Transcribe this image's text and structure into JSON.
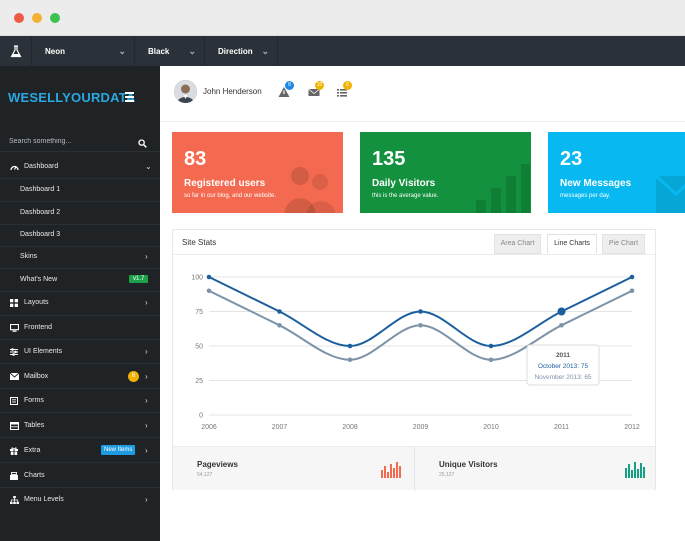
{
  "theme_bar": {
    "items": [
      {
        "label": "Neon"
      },
      {
        "label": "Black"
      },
      {
        "label": "Direction"
      }
    ]
  },
  "sidebar": {
    "logo": "WESELLYOURDATA",
    "search_placeholder": "Search something...",
    "items": [
      {
        "label": "Dashboard",
        "icon": "gauge-icon"
      },
      {
        "label": "Dashboard 1"
      },
      {
        "label": "Dashboard 2"
      },
      {
        "label": "Dashboard 3"
      },
      {
        "label": "Skins"
      },
      {
        "label": "What's New",
        "badge": "v1.7"
      },
      {
        "label": "Layouts",
        "icon": "grid-icon"
      },
      {
        "label": "Frontend",
        "icon": "monitor-icon"
      },
      {
        "label": "UI Elements",
        "icon": "sliders-icon"
      },
      {
        "label": "Mailbox",
        "icon": "envelope-icon",
        "badge": "6"
      },
      {
        "label": "Forms",
        "icon": "form-icon"
      },
      {
        "label": "Tables",
        "icon": "table-icon"
      },
      {
        "label": "Extra",
        "icon": "gift-icon",
        "badge": "New Items"
      },
      {
        "label": "Charts",
        "icon": "chart-icon"
      },
      {
        "label": "Menu Levels",
        "icon": "sitemap-icon"
      }
    ]
  },
  "header": {
    "username": "John Henderson",
    "notifications": [
      {
        "icon": "warning-icon",
        "count": "8",
        "color": "#1e88e5"
      },
      {
        "icon": "mail-icon",
        "count": "10",
        "color": "#f2b300"
      },
      {
        "icon": "list-icon",
        "count": "6",
        "color": "#f2b300"
      }
    ]
  },
  "cards": [
    {
      "number": "83",
      "title": "Registered users",
      "subtitle": "so far in our blog, and our website.",
      "color": "#f36a50"
    },
    {
      "number": "135",
      "title": "Daily Visitors",
      "subtitle": "this is the average value.",
      "color": "#13913e"
    },
    {
      "number": "23",
      "title": "New Messages",
      "subtitle": "messages per day.",
      "color": "#07b9f0"
    }
  ],
  "site_stats": {
    "title": "Site Stats",
    "tabs": [
      "Area Chart",
      "Line Charts",
      "Pie Chart"
    ],
    "active_tab": "Line Charts",
    "tooltip": {
      "title": "2011",
      "line1": "October 2013: 75",
      "line2": "November 2013: 65"
    },
    "footer": [
      {
        "label": "Pageviews",
        "value": "54,127",
        "color": "#f36a50"
      },
      {
        "label": "Unique Visitors",
        "value": "25,127",
        "color": "#16a085"
      }
    ]
  },
  "chart_data": {
    "type": "line",
    "categories": [
      "2006",
      "2007",
      "2008",
      "2009",
      "2010",
      "2011",
      "2012"
    ],
    "series": [
      {
        "name": "October 2013",
        "values": [
          100,
          75,
          50,
          75,
          50,
          75,
          100
        ],
        "color": "#1c5f9e"
      },
      {
        "name": "November 2013",
        "values": [
          90,
          65,
          40,
          65,
          40,
          65,
          90
        ],
        "color": "#7d93a8"
      }
    ],
    "yticks": [
      0,
      25,
      50,
      75,
      100
    ],
    "ylim": [
      0,
      100
    ],
    "grid": true
  }
}
